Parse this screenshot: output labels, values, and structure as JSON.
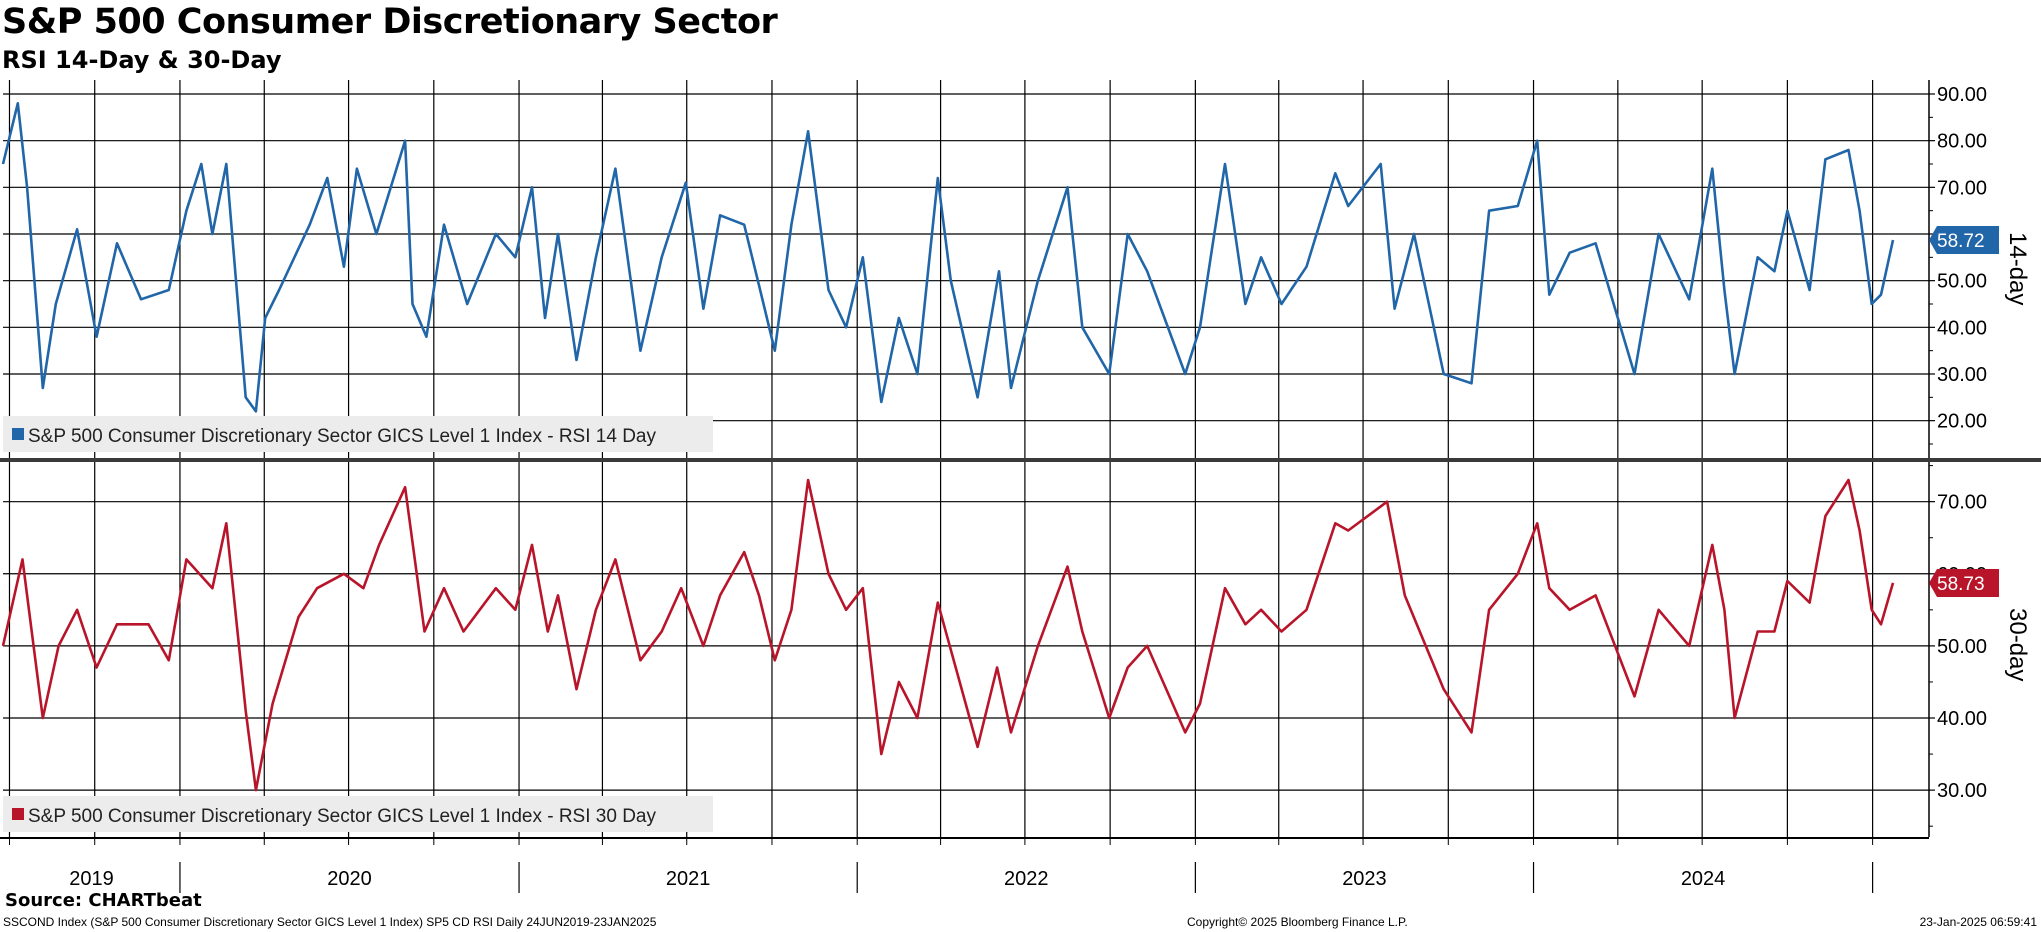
{
  "header": {
    "title": "S&P 500 Consumer Discretionary Sector",
    "subtitle": "RSI 14-Day & 30-Day"
  },
  "footer": {
    "source": "Source: CHARTbeat",
    "description": "SSCOND Index (S&P 500 Consumer Discretionary Sector GICS Level 1 Index) SP5 CD RSI  Daily 24JUN2019-23JAN2025",
    "copyright": "Copyright© 2025 Bloomberg Finance L.P.",
    "timestamp": "23-Jan-2025 06:59:41"
  },
  "colors": {
    "rsi14": "#2166a8",
    "rsi30": "#b8152b",
    "grid": "#000000"
  },
  "x_axis": {
    "labels": [
      "2019",
      "2020",
      "2021",
      "2022",
      "2023",
      "2024"
    ],
    "date_range": [
      "2019-06-24",
      "2025-01-23"
    ]
  },
  "chart_data": [
    {
      "type": "line",
      "panel": "top",
      "axis_label": "14-day",
      "ylim": [
        12,
        93
      ],
      "yticks": [
        20,
        30,
        40,
        50,
        60,
        70,
        80,
        90
      ],
      "ytick_labels": [
        "20.00",
        "30.00",
        "40.00",
        "50.00",
        "60.00",
        "70.00",
        "80.00",
        "90.00"
      ],
      "last_value_label": "58.72",
      "grid": true,
      "legend_position": "bottom-left",
      "series": [
        {
          "name": "S&P 500 Consumer Discretionary Sector GICS Level 1 Index - RSI 14 Day",
          "points": [
            [
              "2019-06-24",
              75
            ],
            [
              "2019-07-10",
              88
            ],
            [
              "2019-07-20",
              70
            ],
            [
              "2019-08-06",
              27
            ],
            [
              "2019-08-20",
              45
            ],
            [
              "2019-09-12",
              61
            ],
            [
              "2019-10-03",
              38
            ],
            [
              "2019-10-25",
              58
            ],
            [
              "2019-11-20",
              46
            ],
            [
              "2019-12-20",
              48
            ],
            [
              "2020-01-08",
              65
            ],
            [
              "2020-01-24",
              75
            ],
            [
              "2020-02-05",
              60
            ],
            [
              "2020-02-20",
              75
            ],
            [
              "2020-03-12",
              25
            ],
            [
              "2020-03-23",
              22
            ],
            [
              "2020-04-02",
              42
            ],
            [
              "2020-04-17",
              48
            ],
            [
              "2020-05-20",
              62
            ],
            [
              "2020-06-08",
              72
            ],
            [
              "2020-06-26",
              53
            ],
            [
              "2020-07-10",
              74
            ],
            [
              "2020-07-31",
              60
            ],
            [
              "2020-08-31",
              80
            ],
            [
              "2020-09-08",
              45
            ],
            [
              "2020-09-23",
              38
            ],
            [
              "2020-10-12",
              62
            ],
            [
              "2020-11-06",
              45
            ],
            [
              "2020-12-07",
              60
            ],
            [
              "2020-12-28",
              55
            ],
            [
              "2021-01-15",
              70
            ],
            [
              "2021-01-29",
              42
            ],
            [
              "2021-02-12",
              60
            ],
            [
              "2021-03-04",
              33
            ],
            [
              "2021-03-25",
              55
            ],
            [
              "2021-04-15",
              74
            ],
            [
              "2021-05-12",
              35
            ],
            [
              "2021-06-04",
              55
            ],
            [
              "2021-06-30",
              71
            ],
            [
              "2021-07-19",
              44
            ],
            [
              "2021-08-06",
              64
            ],
            [
              "2021-09-01",
              62
            ],
            [
              "2021-09-17",
              49
            ],
            [
              "2021-10-04",
              35
            ],
            [
              "2021-10-22",
              62
            ],
            [
              "2021-11-09",
              82
            ],
            [
              "2021-12-01",
              48
            ],
            [
              "2021-12-20",
              40
            ],
            [
              "2022-01-07",
              55
            ],
            [
              "2022-01-27",
              24
            ],
            [
              "2022-02-15",
              42
            ],
            [
              "2022-03-07",
              30
            ],
            [
              "2022-03-29",
              72
            ],
            [
              "2022-04-12",
              50
            ],
            [
              "2022-05-11",
              25
            ],
            [
              "2022-06-03",
              52
            ],
            [
              "2022-06-16",
              27
            ],
            [
              "2022-07-15",
              50
            ],
            [
              "2022-08-16",
              70
            ],
            [
              "2022-09-01",
              40
            ],
            [
              "2022-09-30",
              30
            ],
            [
              "2022-10-20",
              60
            ],
            [
              "2022-11-10",
              52
            ],
            [
              "2022-12-21",
              30
            ],
            [
              "2023-01-06",
              40
            ],
            [
              "2023-02-02",
              75
            ],
            [
              "2023-02-24",
              45
            ],
            [
              "2023-03-13",
              55
            ],
            [
              "2023-04-04",
              45
            ],
            [
              "2023-05-01",
              53
            ],
            [
              "2023-06-01",
              73
            ],
            [
              "2023-06-15",
              66
            ],
            [
              "2023-07-20",
              75
            ],
            [
              "2023-08-04",
              44
            ],
            [
              "2023-08-25",
              60
            ],
            [
              "2023-09-26",
              30
            ],
            [
              "2023-10-26",
              28
            ],
            [
              "2023-11-14",
              65
            ],
            [
              "2023-12-15",
              66
            ],
            [
              "2024-01-05",
              80
            ],
            [
              "2024-01-18",
              47
            ],
            [
              "2024-02-09",
              56
            ],
            [
              "2024-03-08",
              58
            ],
            [
              "2024-04-19",
              30
            ],
            [
              "2024-05-15",
              60
            ],
            [
              "2024-06-17",
              46
            ],
            [
              "2024-07-12",
              74
            ],
            [
              "2024-07-25",
              48
            ],
            [
              "2024-08-05",
              30
            ],
            [
              "2024-08-30",
              55
            ],
            [
              "2024-09-17",
              52
            ],
            [
              "2024-10-01",
              65
            ],
            [
              "2024-10-25",
              48
            ],
            [
              "2024-11-11",
              76
            ],
            [
              "2024-12-06",
              78
            ],
            [
              "2024-12-18",
              65
            ],
            [
              "2024-12-31",
              45
            ],
            [
              "2025-01-10",
              47
            ],
            [
              "2025-01-23",
              58.72
            ]
          ]
        }
      ]
    },
    {
      "type": "line",
      "panel": "bottom",
      "axis_label": "30-day",
      "ylim": [
        23.5,
        75.5
      ],
      "yticks": [
        30,
        40,
        50,
        60,
        70
      ],
      "ytick_labels": [
        "30.00",
        "40.00",
        "50.00",
        "60.00",
        "70.00"
      ],
      "last_value_label": "58.73",
      "grid": true,
      "legend_position": "bottom-left",
      "series": [
        {
          "name": "S&P 500 Consumer Discretionary Sector GICS Level 1 Index - RSI 30 Day",
          "points": [
            [
              "2019-06-24",
              50
            ],
            [
              "2019-07-15",
              62
            ],
            [
              "2019-08-06",
              40
            ],
            [
              "2019-08-23",
              50
            ],
            [
              "2019-09-12",
              55
            ],
            [
              "2019-10-03",
              47
            ],
            [
              "2019-10-25",
              53
            ],
            [
              "2019-11-28",
              53
            ],
            [
              "2019-12-20",
              48
            ],
            [
              "2020-01-08",
              62
            ],
            [
              "2020-02-05",
              58
            ],
            [
              "2020-02-20",
              67
            ],
            [
              "2020-03-12",
              41
            ],
            [
              "2020-03-23",
              30
            ],
            [
              "2020-04-10",
              42
            ],
            [
              "2020-05-08",
              54
            ],
            [
              "2020-05-28",
              58
            ],
            [
              "2020-06-26",
              60
            ],
            [
              "2020-07-17",
              58
            ],
            [
              "2020-08-03",
              64
            ],
            [
              "2020-08-31",
              72
            ],
            [
              "2020-09-21",
              52
            ],
            [
              "2020-10-12",
              58
            ],
            [
              "2020-11-02",
              52
            ],
            [
              "2020-12-07",
              58
            ],
            [
              "2020-12-28",
              55
            ],
            [
              "2021-01-15",
              64
            ],
            [
              "2021-02-01",
              52
            ],
            [
              "2021-02-12",
              57
            ],
            [
              "2021-03-04",
              44
            ],
            [
              "2021-03-25",
              55
            ],
            [
              "2021-04-15",
              62
            ],
            [
              "2021-05-12",
              48
            ],
            [
              "2021-06-04",
              52
            ],
            [
              "2021-06-25",
              58
            ],
            [
              "2021-07-19",
              50
            ],
            [
              "2021-08-06",
              57
            ],
            [
              "2021-09-01",
              63
            ],
            [
              "2021-09-17",
              57
            ],
            [
              "2021-10-04",
              48
            ],
            [
              "2021-10-22",
              55
            ],
            [
              "2021-11-09",
              73
            ],
            [
              "2021-12-01",
              60
            ],
            [
              "2021-12-20",
              55
            ],
            [
              "2022-01-07",
              58
            ],
            [
              "2022-01-27",
              35
            ],
            [
              "2022-02-15",
              45
            ],
            [
              "2022-03-07",
              40
            ],
            [
              "2022-03-29",
              56
            ],
            [
              "2022-05-11",
              36
            ],
            [
              "2022-06-01",
              47
            ],
            [
              "2022-06-16",
              38
            ],
            [
              "2022-07-15",
              50
            ],
            [
              "2022-08-16",
              61
            ],
            [
              "2022-09-01",
              52
            ],
            [
              "2022-09-30",
              40
            ],
            [
              "2022-10-20",
              47
            ],
            [
              "2022-11-10",
              50
            ],
            [
              "2022-12-21",
              38
            ],
            [
              "2023-01-06",
              42
            ],
            [
              "2023-02-02",
              58
            ],
            [
              "2023-02-24",
              53
            ],
            [
              "2023-03-13",
              55
            ],
            [
              "2023-04-04",
              52
            ],
            [
              "2023-05-01",
              55
            ],
            [
              "2023-06-01",
              67
            ],
            [
              "2023-06-15",
              66
            ],
            [
              "2023-07-27",
              70
            ],
            [
              "2023-08-15",
              57
            ],
            [
              "2023-09-26",
              44
            ],
            [
              "2023-10-26",
              38
            ],
            [
              "2023-11-14",
              55
            ],
            [
              "2023-12-15",
              60
            ],
            [
              "2024-01-05",
              67
            ],
            [
              "2024-01-18",
              58
            ],
            [
              "2024-02-09",
              55
            ],
            [
              "2024-03-08",
              57
            ],
            [
              "2024-04-19",
              43
            ],
            [
              "2024-05-15",
              55
            ],
            [
              "2024-06-17",
              50
            ],
            [
              "2024-07-12",
              64
            ],
            [
              "2024-07-25",
              55
            ],
            [
              "2024-08-05",
              40
            ],
            [
              "2024-08-30",
              52
            ],
            [
              "2024-09-17",
              52
            ],
            [
              "2024-10-01",
              59
            ],
            [
              "2024-10-25",
              56
            ],
            [
              "2024-11-11",
              68
            ],
            [
              "2024-12-06",
              73
            ],
            [
              "2024-12-18",
              66
            ],
            [
              "2024-12-31",
              55
            ],
            [
              "2025-01-10",
              53
            ],
            [
              "2025-01-23",
              58.73
            ]
          ]
        }
      ]
    }
  ]
}
